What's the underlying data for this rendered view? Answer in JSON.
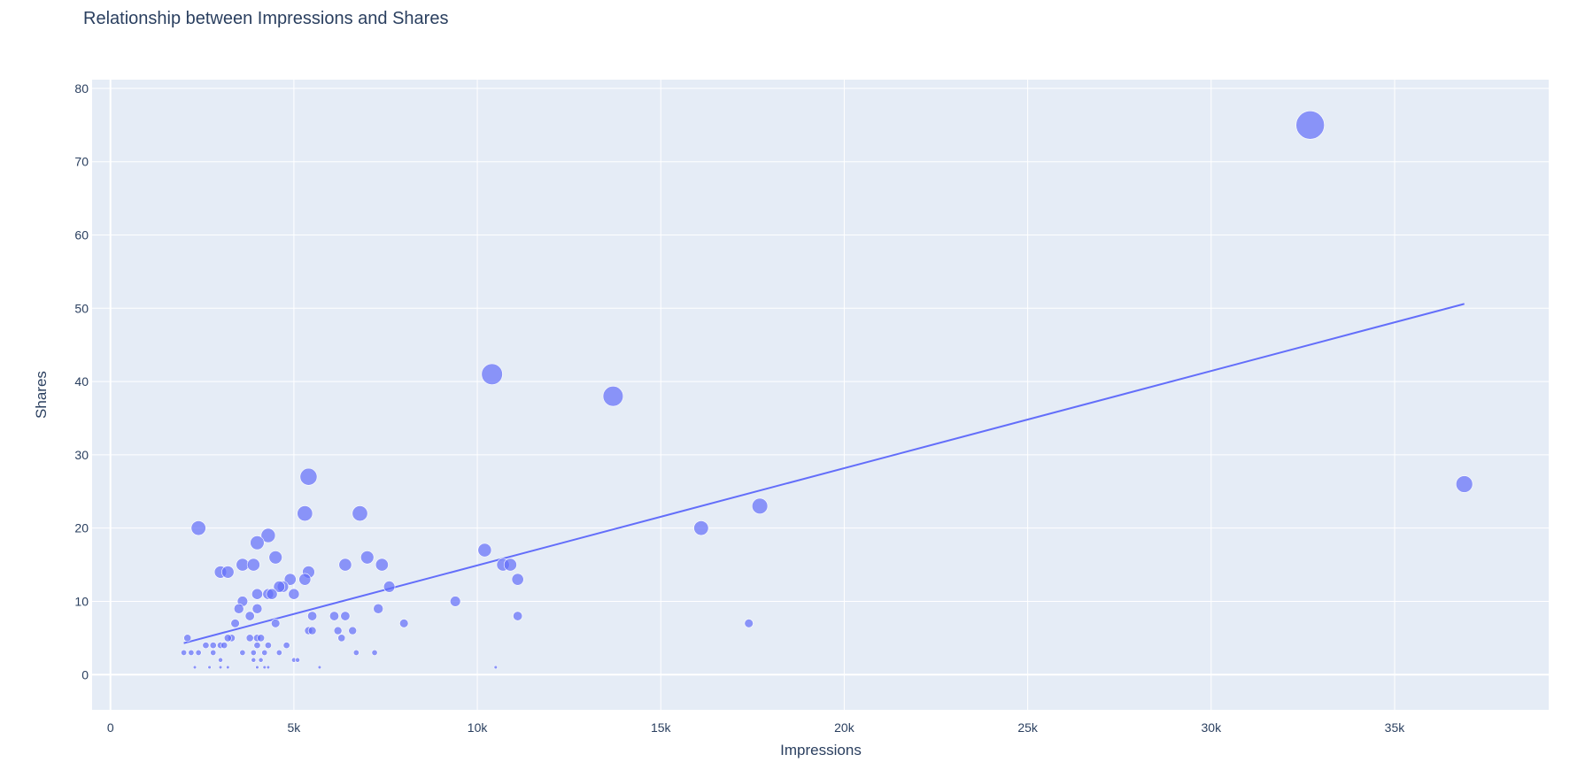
{
  "chart_data": {
    "type": "scatter",
    "title": "Relationship between Impressions and Shares",
    "xlabel": "Impressions",
    "ylabel": "Shares",
    "xlim": [
      -500,
      39200
    ],
    "ylim": [
      -4.8,
      81.2
    ],
    "x_ticks": [
      0,
      5000,
      10000,
      15000,
      20000,
      25000,
      30000,
      35000
    ],
    "x_tick_labels": [
      "0",
      "5k",
      "10k",
      "15k",
      "20k",
      "25k",
      "30k",
      "35k"
    ],
    "y_ticks": [
      0,
      10,
      20,
      30,
      40,
      50,
      60,
      70,
      80
    ],
    "y_tick_labels": [
      "0",
      "10",
      "20",
      "30",
      "40",
      "50",
      "60",
      "70",
      "80"
    ],
    "grid": true,
    "legend": "none",
    "colors": {
      "plot_bg": "#e5ecf6",
      "grid": "#ffffff",
      "marker": "#636efa",
      "trend": "#636efa"
    },
    "marker_size_by": "Shares",
    "series": [
      {
        "type": "scatter",
        "x": [
          32700,
          36900,
          10400,
          13700,
          5400,
          2400,
          5300,
          6800,
          17700,
          16100,
          10200,
          4300,
          4000,
          4500,
          7000,
          10700,
          10900,
          6400,
          7400,
          3600,
          3900,
          3000,
          3200,
          5400,
          11100,
          4900,
          5300,
          4700,
          4600,
          7600,
          4000,
          4300,
          5000,
          3600,
          4400,
          7300,
          9400,
          3800,
          4000,
          3500,
          5500,
          6100,
          6400,
          11100,
          3400,
          4500,
          8000,
          17400,
          5400,
          5500,
          6200,
          6600,
          2100,
          3300,
          3800,
          3200,
          4000,
          4100,
          6300,
          2600,
          2800,
          3000,
          3100,
          4000,
          4300,
          4800,
          2000,
          2200,
          2400,
          2800,
          3600,
          3900,
          4200,
          4600,
          6700,
          7200,
          3000,
          3900,
          4100,
          5000,
          5100,
          2300,
          2700,
          3000,
          3200,
          4000,
          4200,
          4300,
          5700,
          10500
        ],
        "y": [
          75,
          26,
          41,
          38,
          27,
          20,
          22,
          22,
          23,
          20,
          17,
          19,
          18,
          16,
          16,
          15,
          15,
          15,
          15,
          15,
          15,
          14,
          14,
          14,
          13,
          13,
          13,
          12,
          12,
          12,
          11,
          11,
          11,
          10,
          11,
          9,
          10,
          8,
          9,
          9,
          8,
          8,
          8,
          8,
          7,
          7,
          7,
          7,
          6,
          6,
          6,
          6,
          5,
          5,
          5,
          5,
          5,
          5,
          5,
          4,
          4,
          4,
          4,
          4,
          4,
          4,
          3,
          3,
          3,
          3,
          3,
          3,
          3,
          3,
          3,
          3,
          2,
          2,
          2,
          2,
          2,
          1,
          1,
          1,
          1,
          1,
          1,
          1,
          1,
          1
        ]
      },
      {
        "type": "line",
        "name": "",
        "x": [
          2000,
          36900
        ],
        "y": [
          4.3,
          50.6
        ]
      }
    ]
  }
}
